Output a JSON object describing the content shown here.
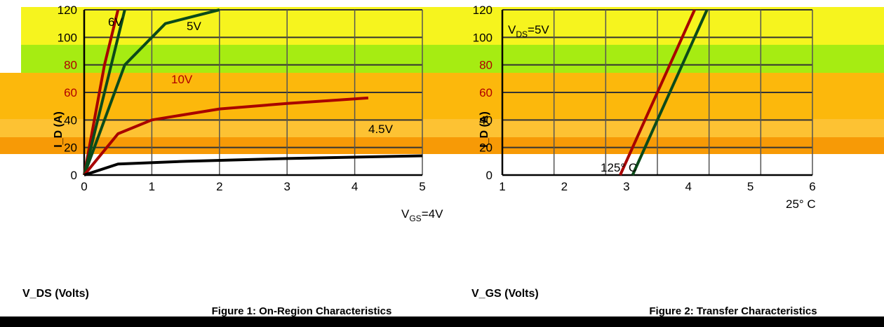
{
  "chart_data": [
    {
      "type": "line",
      "title": "Figure 1: On-Region Characteristics",
      "xlabel": "V_DS (Volts)",
      "ylabel": "I_D (A)",
      "ylim": [
        0,
        120
      ],
      "y_ticks": [
        "0",
        "20",
        "40",
        "60",
        "80",
        "100",
        "120"
      ],
      "x_ticks": [
        "0",
        "1",
        "2",
        "3",
        "4",
        "5"
      ],
      "grid": true,
      "series": [
        {
          "name": "10V",
          "x": [
            0,
            0.15,
            0.3,
            0.5
          ],
          "y": [
            0,
            40,
            80,
            120
          ]
        },
        {
          "name": "6V",
          "x": [
            0,
            0.2,
            0.4,
            0.6
          ],
          "y": [
            0,
            40,
            80,
            120
          ]
        },
        {
          "name": "5V",
          "x": [
            0,
            0.3,
            0.6,
            1.2,
            2.0
          ],
          "y": [
            0,
            40,
            80,
            110,
            120
          ]
        },
        {
          "name": "4.5V",
          "x": [
            0,
            0.5,
            1.0,
            2.0,
            3.0,
            4.2
          ],
          "y": [
            0,
            30,
            40,
            48,
            52,
            56
          ]
        },
        {
          "name": "V_GS=4V",
          "x": [
            0,
            0.5,
            1.5,
            3.0,
            5.0
          ],
          "y": [
            0,
            8,
            10,
            12,
            14
          ]
        }
      ],
      "annotations": {
        "vgs_sub": "GS",
        "vgs_main": "=4V",
        "v10": "10V",
        "v6": "6V",
        "v5": "5V",
        "v45": "4.5V"
      }
    },
    {
      "type": "line",
      "title": "Figure 2: Transfer Characteristics",
      "xlabel": "V_GS (Volts)",
      "ylabel": "I_D (A)",
      "ylim": [
        0,
        120
      ],
      "y_ticks": [
        "0",
        "20",
        "40",
        "60",
        "80",
        "100",
        "120"
      ],
      "x_ticks": [
        "1",
        "2",
        "3",
        "4",
        "5",
        "6"
      ],
      "grid": true,
      "series": [
        {
          "name": "125°C",
          "x": [
            2.9,
            3.3,
            3.7,
            4.1
          ],
          "y": [
            0,
            40,
            80,
            120
          ]
        },
        {
          "name": "25°C",
          "x": [
            3.1,
            3.5,
            3.9,
            4.3
          ],
          "y": [
            0,
            40,
            80,
            120
          ]
        }
      ],
      "annotations": {
        "vds_pre": "V",
        "vds_sub": "DS",
        "vds_main": "=5V",
        "t125": "125° C",
        "t25": "25° C"
      }
    }
  ],
  "colors": {
    "yellow": "#f6f41e",
    "lime": "#a6ec12",
    "orange": "#fcb80c",
    "dark_orange": "#f79a06",
    "red_curve": "#a80000",
    "dark_green": "#0b4a1a",
    "black": "#000000"
  }
}
